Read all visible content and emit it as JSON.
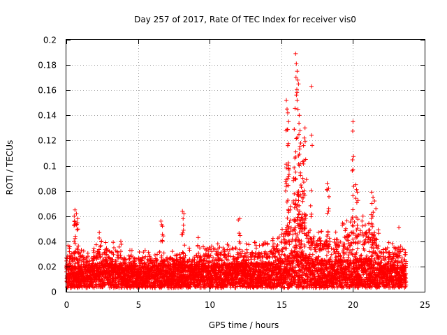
{
  "chart_data": {
    "type": "scatter",
    "title": "Day 257 of 2017, Rate Of TEC Index for receiver vis0",
    "xlabel": "GPS time / hours",
    "ylabel": "ROTI / TECUs",
    "xlim": [
      0,
      25
    ],
    "ylim": [
      0,
      0.2
    ],
    "x_ticks": [
      "0",
      "5",
      "10",
      "15",
      "20",
      "25"
    ],
    "y_ticks": [
      "0",
      "0.02",
      "0.04",
      "0.06",
      "0.08",
      "0.1",
      "0.12",
      "0.14",
      "0.16",
      "0.18",
      "0.2"
    ],
    "grid": true,
    "marker": "+",
    "color": "#ff0000",
    "series": [
      {
        "name": "ROTI",
        "profile": [
          [
            0.0,
            0.012,
            0.03
          ],
          [
            1.5,
            0.012,
            0.025
          ],
          [
            2.5,
            0.014,
            0.035
          ],
          [
            4.0,
            0.012,
            0.028
          ],
          [
            6.0,
            0.012,
            0.026
          ],
          [
            8.0,
            0.013,
            0.027
          ],
          [
            10.0,
            0.013,
            0.03
          ],
          [
            12.0,
            0.014,
            0.032
          ],
          [
            14.0,
            0.014,
            0.032
          ],
          [
            15.0,
            0.016,
            0.04
          ],
          [
            15.5,
            0.02,
            0.055
          ],
          [
            16.0,
            0.025,
            0.07
          ],
          [
            16.5,
            0.022,
            0.06
          ],
          [
            17.0,
            0.018,
            0.045
          ],
          [
            18.0,
            0.016,
            0.04
          ],
          [
            19.0,
            0.016,
            0.042
          ],
          [
            20.0,
            0.017,
            0.048
          ],
          [
            21.0,
            0.018,
            0.05
          ],
          [
            21.5,
            0.016,
            0.045
          ],
          [
            22.0,
            0.014,
            0.035
          ],
          [
            23.0,
            0.012,
            0.03
          ],
          [
            23.7,
            0.012,
            0.03
          ]
        ],
        "peaks": [
          [
            0.6,
            0.065
          ],
          [
            0.7,
            0.062
          ],
          [
            0.8,
            0.058
          ],
          [
            0.55,
            0.06
          ],
          [
            2.3,
            0.047
          ],
          [
            3.8,
            0.04
          ],
          [
            6.6,
            0.056
          ],
          [
            6.7,
            0.052
          ],
          [
            8.1,
            0.064
          ],
          [
            8.2,
            0.062
          ],
          [
            8.15,
            0.058
          ],
          [
            9.2,
            0.043
          ],
          [
            12.1,
            0.058
          ],
          [
            12.0,
            0.057
          ],
          [
            15.35,
            0.152
          ],
          [
            15.4,
            0.145
          ],
          [
            15.45,
            0.142
          ],
          [
            15.5,
            0.135
          ],
          [
            15.45,
            0.116
          ],
          [
            15.5,
            0.1
          ],
          [
            15.3,
            0.08
          ],
          [
            15.9,
            0.129
          ],
          [
            16.0,
            0.189
          ],
          [
            16.05,
            0.181
          ],
          [
            16.1,
            0.175
          ],
          [
            16.15,
            0.168
          ],
          [
            16.2,
            0.165
          ],
          [
            16.1,
            0.152
          ],
          [
            16.25,
            0.14
          ],
          [
            16.3,
            0.128
          ],
          [
            16.35,
            0.118
          ],
          [
            16.2,
            0.108
          ],
          [
            16.25,
            0.1
          ],
          [
            16.0,
            0.095
          ],
          [
            16.5,
            0.09
          ],
          [
            16.4,
            0.083
          ],
          [
            16.6,
            0.122
          ],
          [
            16.65,
            0.13
          ],
          [
            16.55,
            0.116
          ],
          [
            16.7,
            0.105
          ],
          [
            17.1,
            0.163
          ],
          [
            18.2,
            0.086
          ],
          [
            18.3,
            0.082
          ],
          [
            20.0,
            0.135
          ],
          [
            20.0,
            0.097
          ],
          [
            19.95,
            0.096
          ],
          [
            20.2,
            0.085
          ],
          [
            20.25,
            0.081
          ],
          [
            20.3,
            0.079
          ],
          [
            21.3,
            0.079
          ],
          [
            21.4,
            0.075
          ],
          [
            21.5,
            0.072
          ],
          [
            21.6,
            0.066
          ],
          [
            23.2,
            0.051
          ]
        ]
      }
    ]
  }
}
